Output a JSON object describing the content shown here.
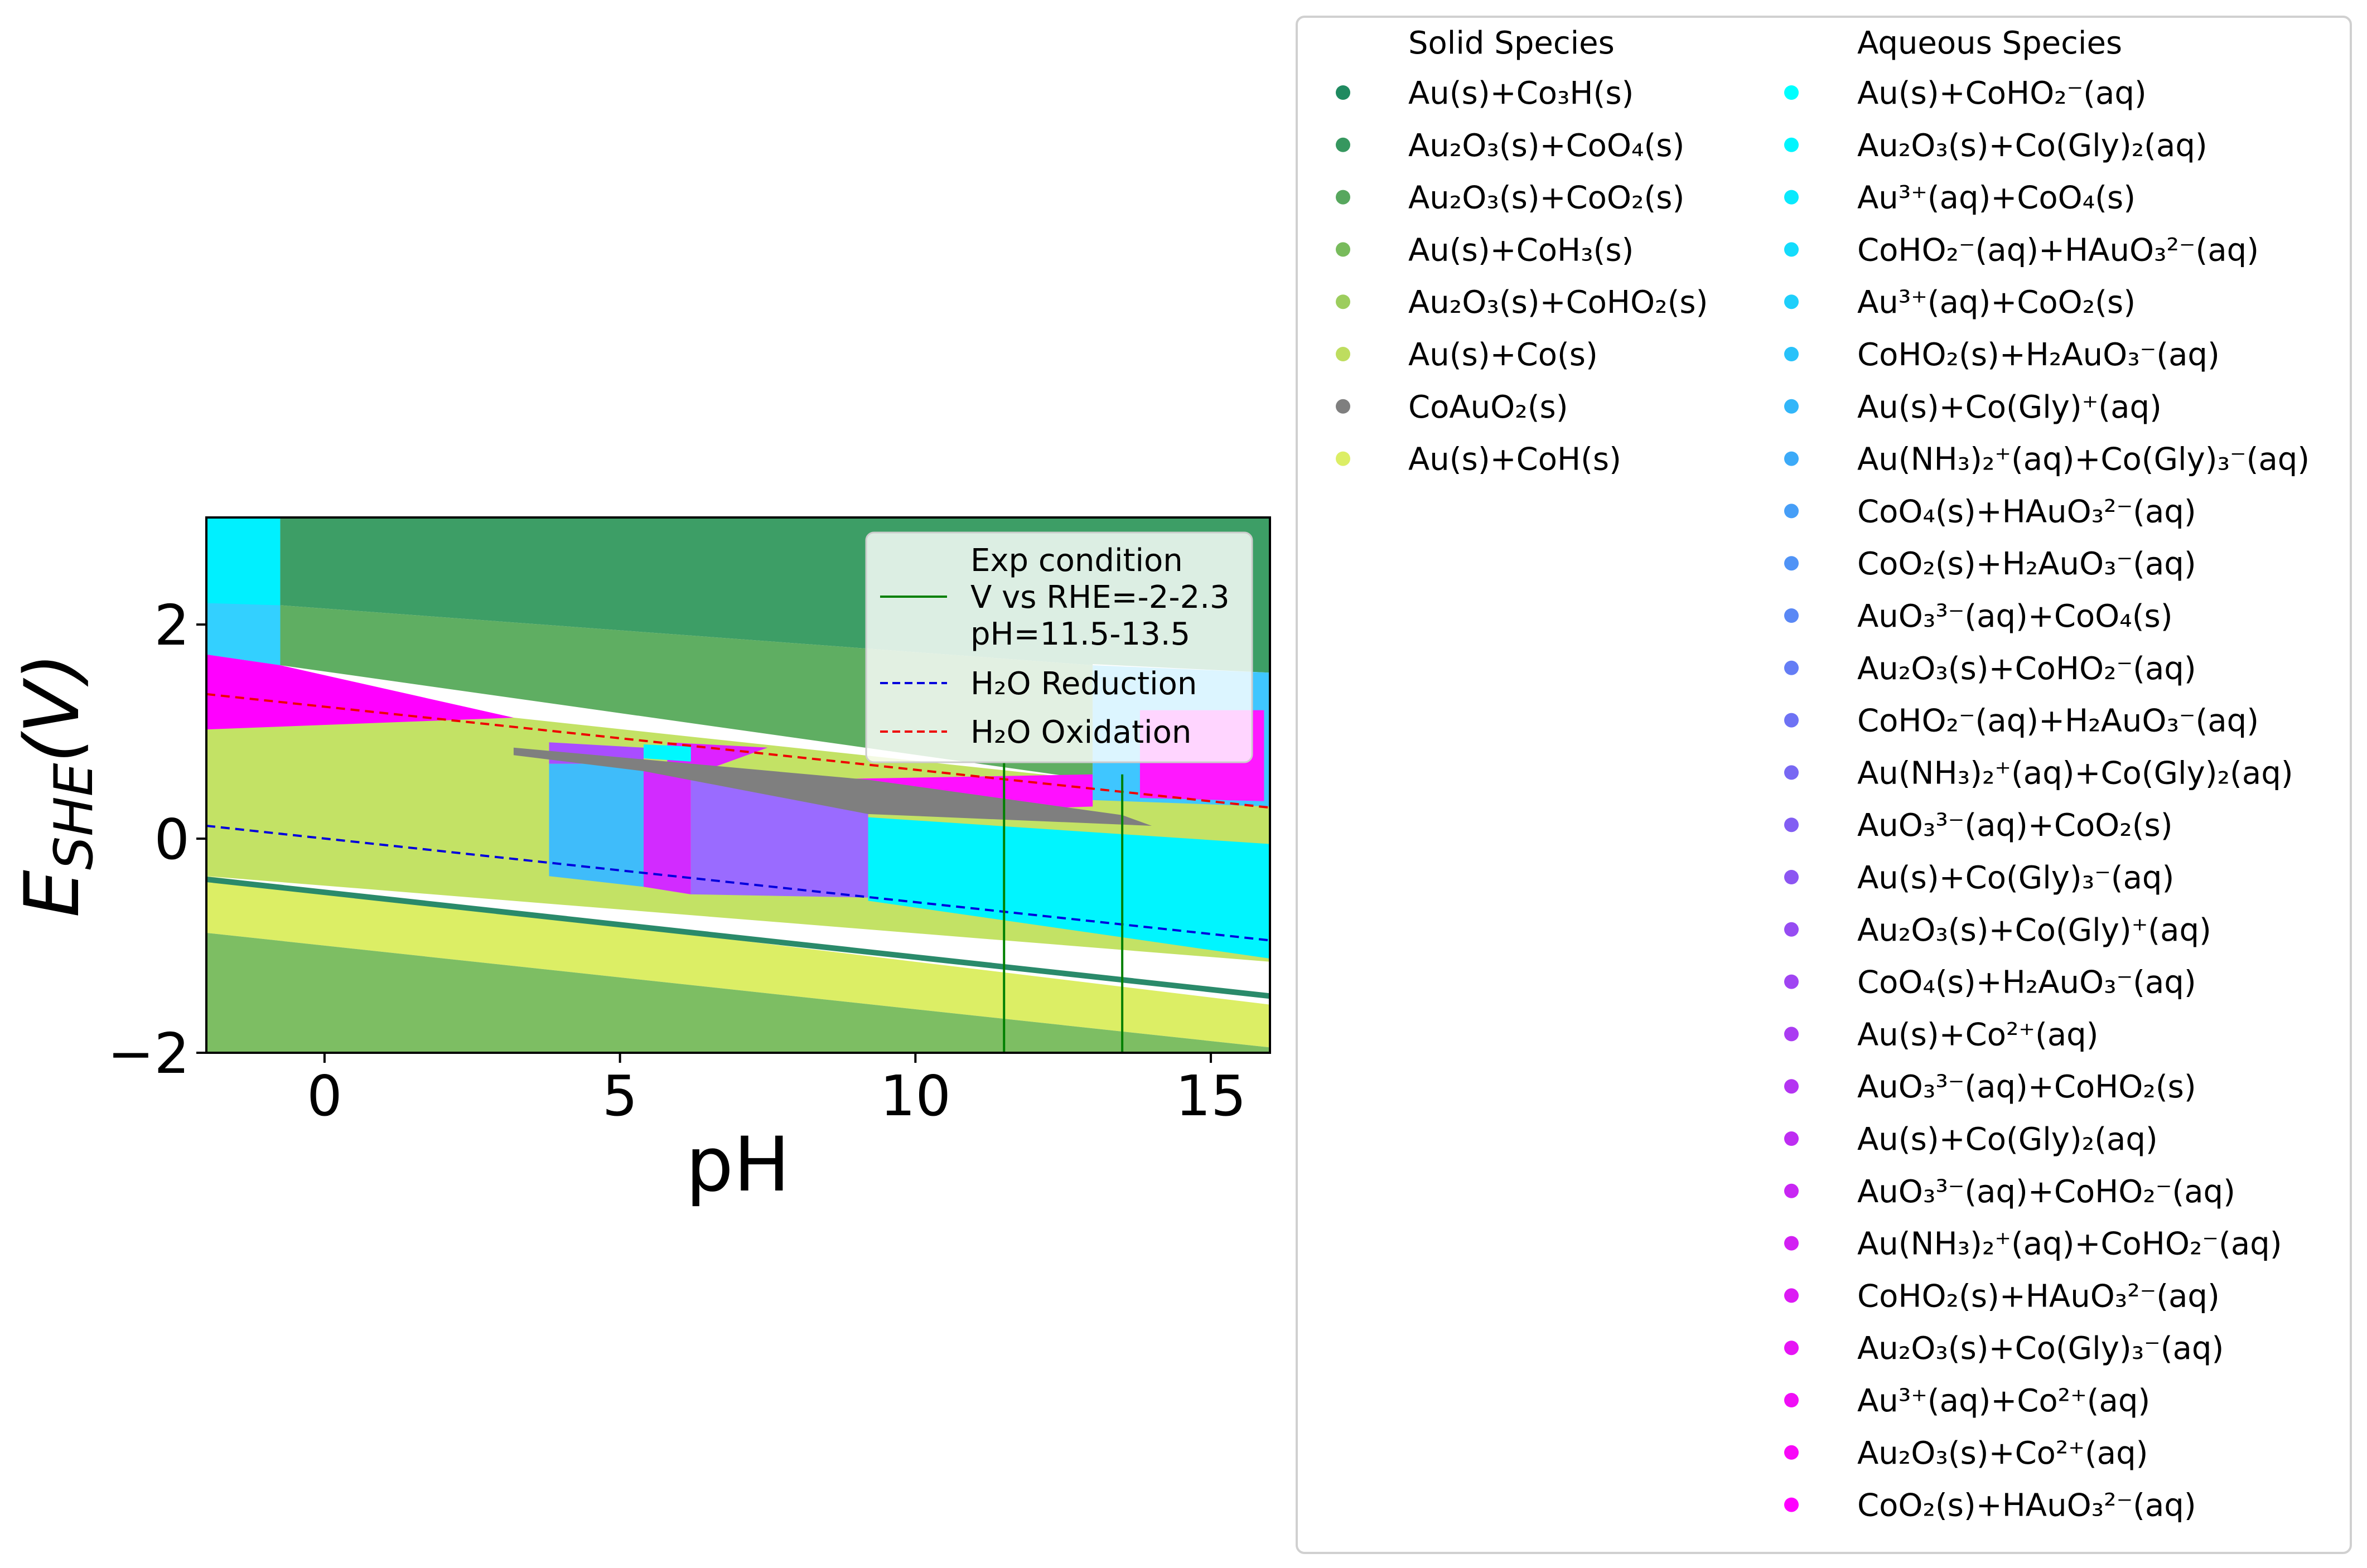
{
  "chart_data": {
    "type": "area",
    "xlabel": "pH",
    "ylabel_main": "E",
    "ylabel_sub": "SHE",
    "ylabel_unit": "(V)",
    "xlim": [
      -2,
      16
    ],
    "ylim": [
      -2,
      3
    ],
    "xticks": [
      0,
      5,
      10,
      15
    ],
    "yticks": [
      -2,
      0,
      2
    ],
    "grid": false,
    "regions": [
      {
        "species": "Au(s)+CoHO2-(aq)",
        "color": "#00f0ff",
        "polygon": [
          [
            -2,
            3
          ],
          [
            -0.75,
            3
          ],
          [
            -0.75,
            1.62
          ],
          [
            -2,
            1.72
          ]
        ]
      },
      {
        "species": "Au2O3(s)+CoO4(s)",
        "color": "#3d9e66",
        "polygon": [
          [
            -0.75,
            3
          ],
          [
            16,
            3
          ],
          [
            16,
            1.55
          ],
          [
            13,
            1.63
          ],
          [
            13,
            1.62
          ],
          [
            -0.75,
            2.18
          ]
        ]
      },
      {
        "species": "Au2O3(s)+CoO2(s)",
        "color": "#5fae62",
        "polygon": [
          [
            -0.75,
            2.18
          ],
          [
            13,
            1.62
          ],
          [
            13,
            0.55
          ],
          [
            -0.75,
            1.62
          ]
        ]
      },
      {
        "species": "Au(s)+Co(Gly)+(aq)",
        "color": "#33d0ff",
        "polygon": [
          [
            -2,
            2.2
          ],
          [
            -0.75,
            2.18
          ],
          [
            -0.75,
            1.62
          ],
          [
            -2,
            1.72
          ]
        ]
      },
      {
        "species": "Au3+(aq)+Co2+(aq)",
        "color": "#ff00ff",
        "polygon": [
          [
            -2,
            1.72
          ],
          [
            -0.75,
            1.62
          ],
          [
            3.2,
            1.13
          ],
          [
            3.8,
            0.9
          ],
          [
            -2,
            1.02
          ]
        ]
      },
      {
        "species": "Au(s)+Co(Gly)2(aq)",
        "color": "#a94dff",
        "polygon": [
          [
            -2,
            1.02
          ],
          [
            3.8,
            0.9
          ],
          [
            3.8,
            -0.35
          ],
          [
            -2,
            -0.35
          ]
        ]
      },
      {
        "species": "Au(s)+Co(s)",
        "color": "#c3e265",
        "polygon": [
          [
            -2,
            -0.35
          ],
          [
            16,
            -1.15
          ],
          [
            16,
            0.3
          ],
          [
            13,
            0.55
          ],
          [
            3.2,
            1.13
          ],
          [
            -2,
            1.02
          ]
        ]
      },
      {
        "species": "CoHO2(s)+H2AuO3-(aq)",
        "color": "#3fbcfa",
        "polygon": [
          [
            3.8,
            0.7
          ],
          [
            5.4,
            0.7
          ],
          [
            5.4,
            -0.45
          ],
          [
            3.8,
            -0.35
          ]
        ]
      },
      {
        "species": "Au(s)+Co2+(aq) (band)",
        "color": "#a94dff",
        "polygon": [
          [
            3.8,
            0.9
          ],
          [
            5.4,
            0.85
          ],
          [
            5.4,
            0.7
          ],
          [
            3.8,
            0.7
          ]
        ]
      },
      {
        "species": "Au(NH3)2+(aq)+CoHO2-(aq)",
        "color": "#d22bff",
        "polygon": [
          [
            5.4,
            0.72
          ],
          [
            6.2,
            0.68
          ],
          [
            6.2,
            -0.52
          ],
          [
            5.4,
            -0.45
          ]
        ]
      },
      {
        "species": "Au(s)+Co(Gly)3-(aq)",
        "color": "#9a6bff",
        "polygon": [
          [
            6.2,
            0.68
          ],
          [
            9.2,
            0.35
          ],
          [
            9.2,
            -0.55
          ],
          [
            6.2,
            -0.52
          ]
        ]
      },
      {
        "species": "AuO3 3-(aq)+CoHO2-(aq)",
        "color": "#dd22ff",
        "polygon": [
          [
            5.8,
            0.9
          ],
          [
            7.5,
            0.85
          ],
          [
            6.5,
            0.65
          ],
          [
            5.8,
            0.7
          ]
        ]
      },
      {
        "species": "Au2O3(s)+CoHO2-(aq)",
        "color": "#00f8ff",
        "polygon": [
          [
            5.4,
            0.88
          ],
          [
            6.2,
            0.86
          ],
          [
            6.2,
            0.72
          ],
          [
            5.4,
            0.75
          ]
        ]
      },
      {
        "species": "Au2O3(s)+Co(Gly)2(aq) (cyan)",
        "color": "#00f5ff",
        "polygon": [
          [
            9.2,
            0.2
          ],
          [
            16,
            -0.05
          ],
          [
            16,
            -1.12
          ],
          [
            9.2,
            -0.58
          ]
        ]
      },
      {
        "species": "CoO2(s)+HAuO3 2-(aq)",
        "color": "#ff10ff",
        "polygon": [
          [
            8.0,
            0.55
          ],
          [
            13,
            0.6
          ],
          [
            13,
            0.3
          ],
          [
            9.2,
            0.23
          ]
        ]
      },
      {
        "species": "CoAuO2(s)",
        "color": "#7f7f7f",
        "polygon": [
          [
            3.2,
            0.85
          ],
          [
            9.2,
            0.55
          ],
          [
            13.5,
            0.22
          ],
          [
            14,
            0.12
          ],
          [
            9.2,
            0.23
          ],
          [
            5.4,
            0.63
          ],
          [
            3.2,
            0.78
          ]
        ]
      },
      {
        "species": "Au(s)+Co(Gly)+(aq) right",
        "color": "#3fc6ff",
        "polygon": [
          [
            13,
            1.62
          ],
          [
            16,
            1.55
          ],
          [
            16,
            0.3
          ],
          [
            13,
            0.36
          ]
        ]
      },
      {
        "species": "Au3+(aq)+CoO2(s) right",
        "color": "#ff18ff",
        "polygon": [
          [
            13.8,
            1.2
          ],
          [
            15.9,
            1.2
          ],
          [
            15.9,
            0.35
          ],
          [
            13.8,
            0.38
          ]
        ]
      },
      {
        "species": "Au(s)+CoH(s)",
        "color": "#dcee65",
        "polygon": [
          [
            -2,
            -0.35
          ],
          [
            16,
            -1.55
          ],
          [
            16,
            -1.95
          ],
          [
            -2,
            -0.88
          ]
        ]
      },
      {
        "species": "Au(s)+CoH3(s)",
        "color": "#7dbe63",
        "polygon": [
          [
            -2,
            -0.88
          ],
          [
            16,
            -1.95
          ],
          [
            16,
            -2
          ],
          [
            -2,
            -2
          ]
        ]
      }
    ],
    "lines": [
      {
        "name": "Au(s)+Co3H(s) boundary",
        "color": "#2a8a6a",
        "style": "solid",
        "width": 10,
        "points": [
          [
            -2,
            -0.38
          ],
          [
            16,
            -1.47
          ]
        ]
      },
      {
        "name": "H2O Reduction",
        "color": "#0000dd",
        "style": "dashed",
        "points": [
          [
            -2,
            0.12
          ],
          [
            16,
            -0.95
          ]
        ]
      },
      {
        "name": "H2O Oxidation",
        "color": "#ee0000",
        "style": "dashed",
        "points": [
          [
            -2,
            1.35
          ],
          [
            16,
            0.29
          ]
        ]
      },
      {
        "name": "V vs RHE=-2-2.3",
        "color": "#008000",
        "style": "solid",
        "points": [
          [
            11.5,
            -2
          ],
          [
            11.5,
            0.72
          ]
        ]
      },
      {
        "name": "V vs RHE=-2-2.3",
        "color": "#008000",
        "style": "solid",
        "points": [
          [
            13.5,
            -2
          ],
          [
            13.5,
            0.6
          ]
        ]
      }
    ],
    "plot_legend": {
      "entries": [
        {
          "lines": [
            "Exp condition",
            "V vs RHE=-2-2.3",
            "pH=11.5-13.5"
          ],
          "color": "#008000",
          "style": "solid"
        },
        {
          "lines": [
            "H₂O Reduction"
          ],
          "color": "#0000dd",
          "style": "dashed"
        },
        {
          "lines": [
            "H₂O Oxidation"
          ],
          "color": "#ee0000",
          "style": "dashed"
        }
      ],
      "placement": "top-right"
    },
    "species_legend": {
      "solid_title": "Solid Species",
      "aqueous_title": "Aqueous Species",
      "solid": [
        {
          "label": "Au(s)+Co₃H(s)",
          "color": "#1f8a60"
        },
        {
          "label": "Au₂O₃(s)+CoO₄(s)",
          "color": "#36975f"
        },
        {
          "label": "Au₂O₃(s)+CoO₂(s)",
          "color": "#57a75e"
        },
        {
          "label": "Au(s)+CoH₃(s)",
          "color": "#78bb5c"
        },
        {
          "label": "Au₂O₃(s)+CoHO₂(s)",
          "color": "#9ccd5d"
        },
        {
          "label": "Au(s)+Co(s)",
          "color": "#bedd5f"
        },
        {
          "label": "CoAuO₂(s)",
          "color": "#7f7f7f"
        },
        {
          "label": "Au(s)+CoH(s)",
          "color": "#dcee65"
        }
      ],
      "aqueous": [
        {
          "label": "Au(s)+CoHO₂⁻(aq)",
          "color": "#00ffff"
        },
        {
          "label": "Au₂O₃(s)+Co(Gly)₂(aq)",
          "color": "#00f5fe"
        },
        {
          "label": "Au³⁺(aq)+CoO₄(s)",
          "color": "#0ae9fd"
        },
        {
          "label": "CoHO₂⁻(aq)+HAuO₃²⁻(aq)",
          "color": "#14dcfc"
        },
        {
          "label": "Au³⁺(aq)+CoO₂(s)",
          "color": "#1ecffb"
        },
        {
          "label": "CoHO₂(s)+H₂AuO₃⁻(aq)",
          "color": "#28c2fa"
        },
        {
          "label": "Au(s)+Co(Gly)⁺(aq)",
          "color": "#32b6f9"
        },
        {
          "label": "Au(NH₃)₂⁺(aq)+Co(Gly)₃⁻(aq)",
          "color": "#3caaf8"
        },
        {
          "label": "CoO₄(s)+HAuO₃²⁻(aq)",
          "color": "#469ef7"
        },
        {
          "label": "CoO₂(s)+H₂AuO₃⁻(aq)",
          "color": "#5093f6"
        },
        {
          "label": "AuO₃³⁻(aq)+CoO₄(s)",
          "color": "#5a88f5"
        },
        {
          "label": "Au₂O₃(s)+CoHO₂⁻(aq)",
          "color": "#647df5"
        },
        {
          "label": "CoHO₂⁻(aq)+H₂AuO₃⁻(aq)",
          "color": "#6e72f4"
        },
        {
          "label": "Au(NH₃)₂⁺(aq)+Co(Gly)₂(aq)",
          "color": "#7868f3"
        },
        {
          "label": "AuO₃³⁻(aq)+CoO₂(s)",
          "color": "#825ef3"
        },
        {
          "label": "Au(s)+Co(Gly)₃⁻(aq)",
          "color": "#8c55f2"
        },
        {
          "label": "Au₂O₃(s)+Co(Gly)⁺(aq)",
          "color": "#964cf2"
        },
        {
          "label": "CoO₄(s)+H₂AuO₃⁻(aq)",
          "color": "#a044f2"
        },
        {
          "label": "Au(s)+Co²⁺(aq)",
          "color": "#aa3cf2"
        },
        {
          "label": "AuO₃³⁻(aq)+CoHO₂(s)",
          "color": "#b434f2"
        },
        {
          "label": "Au(s)+Co(Gly)₂(aq)",
          "color": "#be2df2"
        },
        {
          "label": "AuO₃³⁻(aq)+CoHO₂⁻(aq)",
          "color": "#c826f3"
        },
        {
          "label": "Au(NH₃)₂⁺(aq)+CoHO₂⁻(aq)",
          "color": "#d220f3"
        },
        {
          "label": "CoHO₂(s)+HAuO₃²⁻(aq)",
          "color": "#dc1af4"
        },
        {
          "label": "Au₂O₃(s)+Co(Gly)₃⁻(aq)",
          "color": "#e614f5"
        },
        {
          "label": "Au³⁺(aq)+Co²⁺(aq)",
          "color": "#f00ef6"
        },
        {
          "label": "Au₂O₃(s)+Co²⁺(aq)",
          "color": "#f808f8"
        },
        {
          "label": "CoO₂(s)+HAuO₃²⁻(aq)",
          "color": "#ff00ff"
        }
      ]
    }
  }
}
